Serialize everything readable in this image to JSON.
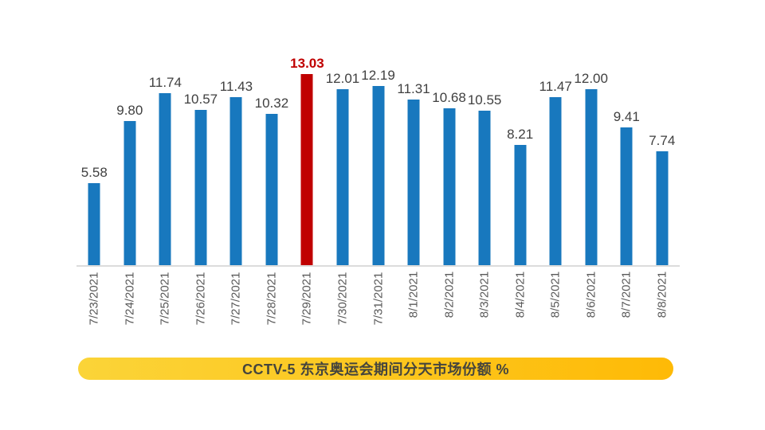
{
  "chart_data": {
    "type": "bar",
    "title": "CCTV-5 东京奥运会期间分天市场份额 %",
    "categories": [
      "7/23/2021",
      "7/24/2021",
      "7/25/2021",
      "7/26/2021",
      "7/27/2021",
      "7/28/2021",
      "7/29/2021",
      "7/30/2021",
      "7/31/2021",
      "8/1/2021",
      "8/2/2021",
      "8/3/2021",
      "8/4/2021",
      "8/5/2021",
      "8/6/2021",
      "8/7/2021",
      "8/8/2021"
    ],
    "values": [
      5.58,
      9.8,
      11.74,
      10.57,
      11.43,
      10.32,
      13.03,
      12.01,
      12.19,
      11.31,
      10.68,
      10.55,
      8.21,
      11.47,
      12.0,
      9.41,
      7.74
    ],
    "highlight_index": 6,
    "data_labels": true,
    "grid": false,
    "legend": "none",
    "xlabel": "",
    "ylabel": "",
    "ylim": [
      0,
      13.5
    ],
    "colors": {
      "bar": "#1878be",
      "highlight_bar": "#c00000",
      "value_label": "#404040",
      "highlight_value_label": "#c00000",
      "date_label": "#595959",
      "axis_line": "#dcdcdc",
      "banner_gradient_left": "#fbd438",
      "banner_gradient_right": "#feba06",
      "banner_text": "#45453d",
      "background": "#ffffff"
    }
  }
}
